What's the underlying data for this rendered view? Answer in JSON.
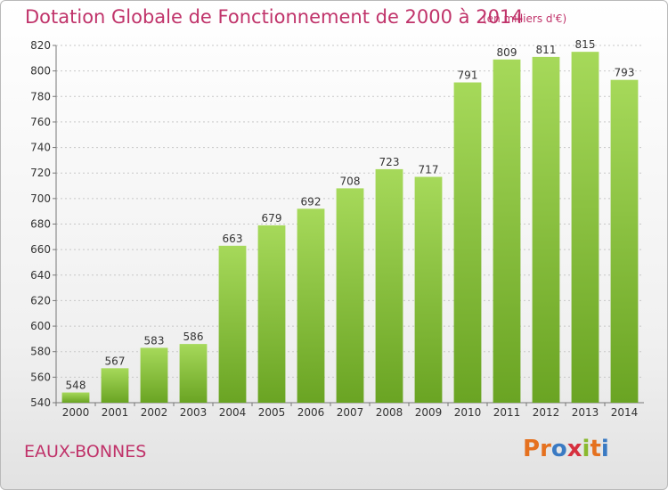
{
  "header": {
    "title": "Dotation Globale de Fonctionnement de 2000 à 2014",
    "unit": "(en milliers d'€)"
  },
  "footer": {
    "commune": "EAUX-BONNES",
    "logo_text": "Proxiti",
    "logo_letters": [
      {
        "ch": "P",
        "color": "#e5711f"
      },
      {
        "ch": "r",
        "color": "#e5711f"
      },
      {
        "ch": "o",
        "color": "#3a7ac3"
      },
      {
        "ch": "x",
        "color": "#d6303f"
      },
      {
        "ch": "i",
        "color": "#8ab92f"
      },
      {
        "ch": "t",
        "color": "#e5711f"
      },
      {
        "ch": "i",
        "color": "#3a7ac3"
      }
    ]
  },
  "colors": {
    "accent": "#c0336a",
    "bar_light": "#a6d95a",
    "bar_dark": "#6aa423",
    "grid": "#c8c8c8"
  },
  "chart_data": {
    "type": "bar",
    "title": "Dotation Globale de Fonctionnement de 2000 à 2014",
    "subtitle": "(en milliers d'€)",
    "xlabel": "",
    "ylabel": "",
    "categories": [
      "2000",
      "2001",
      "2002",
      "2003",
      "2004",
      "2005",
      "2006",
      "2007",
      "2008",
      "2009",
      "2010",
      "2011",
      "2012",
      "2013",
      "2014"
    ],
    "values": [
      548,
      567,
      583,
      586,
      663,
      679,
      692,
      708,
      723,
      717,
      791,
      809,
      811,
      815,
      793
    ],
    "ylim": [
      540,
      820
    ],
    "yticks": [
      540,
      560,
      580,
      600,
      620,
      640,
      660,
      680,
      700,
      720,
      740,
      760,
      780,
      800,
      820
    ],
    "grid": true,
    "legend": "none"
  }
}
